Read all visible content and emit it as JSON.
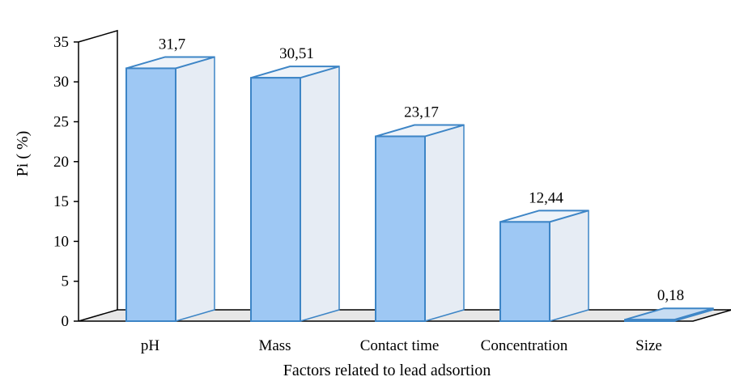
{
  "chart_data": {
    "type": "bar",
    "categories": [
      "pH",
      "Mass",
      "Contact time",
      "Concentration",
      "Size"
    ],
    "values": [
      31.7,
      30.51,
      23.17,
      12.44,
      0.18
    ],
    "data_labels": [
      "31,7",
      "30,51",
      "23,17",
      "12,44",
      "0,18"
    ],
    "y_ticks": [
      0,
      5,
      10,
      15,
      20,
      25,
      30,
      35
    ],
    "ylim": [
      0,
      35
    ],
    "xlabel": "Factors related to lead adsortion",
    "ylabel": "Pi ( %)",
    "style": "3d-column",
    "grid": false,
    "colors": {
      "bar_front": "#9ec8f4",
      "bar_edge": "#3d85c6",
      "bar_side": "#e6ecf4",
      "floor": "#e7e7e7",
      "axis": "#000000"
    }
  }
}
